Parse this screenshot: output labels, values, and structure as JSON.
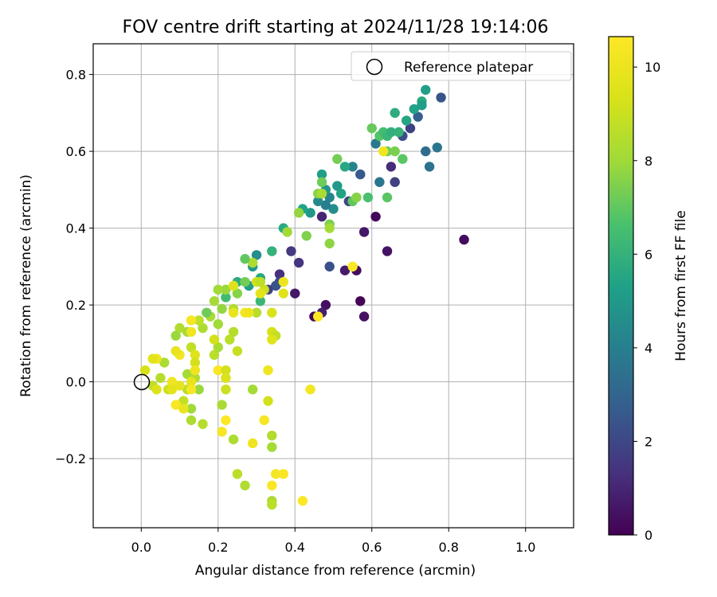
{
  "chart_data": {
    "type": "scatter",
    "title": "FOV centre drift starting at 2024/11/28 19:14:06",
    "xlabel": "Angular distance from reference (arcmin)",
    "ylabel": "Rotation from reference (arcmin)",
    "xlim": [
      -0.125,
      1.125
    ],
    "ylim": [
      -0.38,
      0.88
    ],
    "xticks": [
      0.0,
      0.2,
      0.4,
      0.6,
      0.8,
      1.0
    ],
    "xtick_labels": [
      "0.0",
      "0.2",
      "0.4",
      "0.6",
      "0.8",
      "1.0"
    ],
    "yticks": [
      -0.2,
      0.0,
      0.2,
      0.4,
      0.6,
      0.8
    ],
    "ytick_labels": [
      "−0.2",
      "0.0",
      "0.2",
      "0.4",
      "0.6",
      "0.8"
    ],
    "grid": true,
    "legend": {
      "placement": "top-right",
      "entries": [
        "Reference platepar"
      ]
    },
    "reference_point": {
      "x": 0.0,
      "y": 0.0
    },
    "colorbar": {
      "label": "Hours from first FF file",
      "range": [
        0,
        10.65
      ],
      "ticks": [
        0,
        2,
        4,
        6,
        8,
        10
      ],
      "tick_labels": [
        "0",
        "2",
        "4",
        "6",
        "8",
        "10"
      ],
      "colormap": "viridis"
    },
    "points": [
      {
        "x": 0.84,
        "y": 0.37,
        "h": 0.3
      },
      {
        "x": 0.61,
        "y": 0.43,
        "h": 0.2
      },
      {
        "x": 0.64,
        "y": 0.34,
        "h": 0.5
      },
      {
        "x": 0.57,
        "y": 0.21,
        "h": 0.1
      },
      {
        "x": 0.58,
        "y": 0.17,
        "h": 0.4
      },
      {
        "x": 0.56,
        "y": 0.29,
        "h": 0.3
      },
      {
        "x": 0.48,
        "y": 0.2,
        "h": 0.4
      },
      {
        "x": 0.47,
        "y": 0.18,
        "h": 0.8
      },
      {
        "x": 0.45,
        "y": 0.17,
        "h": 0.2
      },
      {
        "x": 0.4,
        "y": 0.23,
        "h": 0.6
      },
      {
        "x": 0.53,
        "y": 0.29,
        "h": 0.7
      },
      {
        "x": 0.58,
        "y": 0.39,
        "h": 0.6
      },
      {
        "x": 0.47,
        "y": 0.43,
        "h": 1.0
      },
      {
        "x": 0.41,
        "y": 0.31,
        "h": 1.4
      },
      {
        "x": 0.39,
        "y": 0.34,
        "h": 1.6
      },
      {
        "x": 0.36,
        "y": 0.28,
        "h": 1.3
      },
      {
        "x": 0.36,
        "y": 0.26,
        "h": 2.0
      },
      {
        "x": 0.35,
        "y": 0.25,
        "h": 2.4
      },
      {
        "x": 0.33,
        "y": 0.24,
        "h": 1.8
      },
      {
        "x": 0.49,
        "y": 0.3,
        "h": 2.3
      },
      {
        "x": 0.54,
        "y": 0.47,
        "h": 2.0
      },
      {
        "x": 0.57,
        "y": 0.54,
        "h": 2.6
      },
      {
        "x": 0.66,
        "y": 0.52,
        "h": 1.8
      },
      {
        "x": 0.65,
        "y": 0.56,
        "h": 1.2
      },
      {
        "x": 0.68,
        "y": 0.64,
        "h": 2.2
      },
      {
        "x": 0.7,
        "y": 0.66,
        "h": 1.8
      },
      {
        "x": 0.72,
        "y": 0.69,
        "h": 2.8
      },
      {
        "x": 0.78,
        "y": 0.74,
        "h": 2.4
      },
      {
        "x": 0.75,
        "y": 0.56,
        "h": 3.5
      },
      {
        "x": 0.74,
        "y": 0.6,
        "h": 3.3
      },
      {
        "x": 0.77,
        "y": 0.61,
        "h": 3.6
      },
      {
        "x": 0.62,
        "y": 0.52,
        "h": 3.6
      },
      {
        "x": 0.61,
        "y": 0.62,
        "h": 3.8
      },
      {
        "x": 0.55,
        "y": 0.56,
        "h": 4.2
      },
      {
        "x": 0.5,
        "y": 0.45,
        "h": 4.6
      },
      {
        "x": 0.49,
        "y": 0.48,
        "h": 4.2
      },
      {
        "x": 0.48,
        "y": 0.46,
        "h": 3.9
      },
      {
        "x": 0.46,
        "y": 0.47,
        "h": 4.4
      },
      {
        "x": 0.44,
        "y": 0.44,
        "h": 5.0
      },
      {
        "x": 0.42,
        "y": 0.45,
        "h": 5.4
      },
      {
        "x": 0.48,
        "y": 0.5,
        "h": 4.9
      },
      {
        "x": 0.47,
        "y": 0.54,
        "h": 5.2
      },
      {
        "x": 0.51,
        "y": 0.51,
        "h": 5.0
      },
      {
        "x": 0.52,
        "y": 0.49,
        "h": 5.4
      },
      {
        "x": 0.53,
        "y": 0.56,
        "h": 5.6
      },
      {
        "x": 0.37,
        "y": 0.4,
        "h": 5.7
      },
      {
        "x": 0.3,
        "y": 0.33,
        "h": 4.6
      },
      {
        "x": 0.29,
        "y": 0.3,
        "h": 5.0
      },
      {
        "x": 0.31,
        "y": 0.27,
        "h": 5.6
      },
      {
        "x": 0.28,
        "y": 0.25,
        "h": 5.2
      },
      {
        "x": 0.25,
        "y": 0.26,
        "h": 5.8
      },
      {
        "x": 0.34,
        "y": 0.34,
        "h": 6.0
      },
      {
        "x": 0.31,
        "y": 0.21,
        "h": 6.2
      },
      {
        "x": 0.22,
        "y": 0.22,
        "h": 6.4
      },
      {
        "x": 0.59,
        "y": 0.48,
        "h": 6.6
      },
      {
        "x": 0.64,
        "y": 0.48,
        "h": 6.9
      },
      {
        "x": 0.6,
        "y": 0.66,
        "h": 7.1
      },
      {
        "x": 0.62,
        "y": 0.64,
        "h": 6.8
      },
      {
        "x": 0.63,
        "y": 0.65,
        "h": 6.5
      },
      {
        "x": 0.64,
        "y": 0.64,
        "h": 6.2
      },
      {
        "x": 0.65,
        "y": 0.65,
        "h": 5.9
      },
      {
        "x": 0.66,
        "y": 0.7,
        "h": 5.8
      },
      {
        "x": 0.67,
        "y": 0.65,
        "h": 6.0
      },
      {
        "x": 0.69,
        "y": 0.68,
        "h": 5.5
      },
      {
        "x": 0.71,
        "y": 0.71,
        "h": 5.4
      },
      {
        "x": 0.73,
        "y": 0.73,
        "h": 5.7
      },
      {
        "x": 0.74,
        "y": 0.76,
        "h": 5.3
      },
      {
        "x": 0.73,
        "y": 0.72,
        "h": 5.2
      },
      {
        "x": 0.68,
        "y": 0.58,
        "h": 6.9
      },
      {
        "x": 0.64,
        "y": 0.6,
        "h": 7.2
      },
      {
        "x": 0.66,
        "y": 0.6,
        "h": 7.4
      },
      {
        "x": 0.55,
        "y": 0.47,
        "h": 7.0
      },
      {
        "x": 0.56,
        "y": 0.48,
        "h": 7.6
      },
      {
        "x": 0.51,
        "y": 0.58,
        "h": 7.3
      },
      {
        "x": 0.47,
        "y": 0.52,
        "h": 7.2
      },
      {
        "x": 0.46,
        "y": 0.49,
        "h": 7.6
      },
      {
        "x": 0.49,
        "y": 0.41,
        "h": 7.4
      },
      {
        "x": 0.49,
        "y": 0.36,
        "h": 7.7
      },
      {
        "x": 0.43,
        "y": 0.38,
        "h": 7.5
      },
      {
        "x": 0.38,
        "y": 0.39,
        "h": 8.0
      },
      {
        "x": 0.41,
        "y": 0.44,
        "h": 7.8
      },
      {
        "x": 0.47,
        "y": 0.49,
        "h": 8.2
      },
      {
        "x": 0.49,
        "y": 0.4,
        "h": 8.1
      },
      {
        "x": 0.29,
        "y": 0.31,
        "h": 8.3
      },
      {
        "x": 0.27,
        "y": 0.32,
        "h": 7.0
      },
      {
        "x": 0.27,
        "y": 0.26,
        "h": 7.3
      },
      {
        "x": 0.25,
        "y": 0.23,
        "h": 7.6
      },
      {
        "x": 0.22,
        "y": 0.24,
        "h": 7.9
      },
      {
        "x": 0.2,
        "y": 0.24,
        "h": 8.0
      },
      {
        "x": 0.21,
        "y": 0.19,
        "h": 7.8
      },
      {
        "x": 0.19,
        "y": 0.21,
        "h": 8.1
      },
      {
        "x": 0.18,
        "y": 0.17,
        "h": 8.2
      },
      {
        "x": 0.2,
        "y": 0.15,
        "h": 8.0
      },
      {
        "x": 0.17,
        "y": 0.18,
        "h": 7.2
      },
      {
        "x": 0.24,
        "y": 0.19,
        "h": 8.4
      },
      {
        "x": 0.24,
        "y": 0.13,
        "h": 8.5
      },
      {
        "x": 0.23,
        "y": 0.11,
        "h": 8.6
      },
      {
        "x": 0.16,
        "y": 0.14,
        "h": 8.3
      },
      {
        "x": 0.15,
        "y": 0.16,
        "h": 8.7
      },
      {
        "x": 0.12,
        "y": 0.13,
        "h": 8.1
      },
      {
        "x": 0.1,
        "y": 0.14,
        "h": 8.4
      },
      {
        "x": 0.09,
        "y": 0.12,
        "h": 7.9
      },
      {
        "x": 0.13,
        "y": 0.09,
        "h": 8.8
      },
      {
        "x": 0.19,
        "y": 0.07,
        "h": 8.6
      },
      {
        "x": 0.2,
        "y": 0.09,
        "h": 8.2
      },
      {
        "x": 0.25,
        "y": 0.08,
        "h": 8.9
      },
      {
        "x": 0.06,
        "y": 0.05,
        "h": 8.3
      },
      {
        "x": 0.05,
        "y": 0.01,
        "h": 8.5
      },
      {
        "x": 0.03,
        "y": -0.01,
        "h": 8.7
      },
      {
        "x": 0.07,
        "y": -0.02,
        "h": 9.0
      },
      {
        "x": 0.12,
        "y": 0.02,
        "h": 8.1
      },
      {
        "x": 0.14,
        "y": 0.01,
        "h": 8.4
      },
      {
        "x": 0.15,
        "y": -0.02,
        "h": 7.9
      },
      {
        "x": 0.12,
        "y": -0.02,
        "h": 8.6
      },
      {
        "x": 0.11,
        "y": -0.05,
        "h": 8.8
      },
      {
        "x": 0.13,
        "y": -0.07,
        "h": 8.0
      },
      {
        "x": 0.13,
        "y": -0.1,
        "h": 8.3
      },
      {
        "x": 0.16,
        "y": -0.11,
        "h": 8.5
      },
      {
        "x": 0.21,
        "y": -0.06,
        "h": 8.2
      },
      {
        "x": 0.22,
        "y": -0.02,
        "h": 9.0
      },
      {
        "x": 0.24,
        "y": -0.15,
        "h": 8.3
      },
      {
        "x": 0.25,
        "y": -0.24,
        "h": 8.6
      },
      {
        "x": 0.27,
        "y": -0.27,
        "h": 8.4
      },
      {
        "x": 0.29,
        "y": -0.02,
        "h": 8.1
      },
      {
        "x": 0.34,
        "y": -0.14,
        "h": 8.4
      },
      {
        "x": 0.34,
        "y": -0.17,
        "h": 8.1
      },
      {
        "x": 0.34,
        "y": -0.31,
        "h": 8.3
      },
      {
        "x": 0.34,
        "y": -0.32,
        "h": 8.6
      },
      {
        "x": 0.33,
        "y": -0.05,
        "h": 9.2
      },
      {
        "x": 0.3,
        "y": 0.18,
        "h": 8.5
      },
      {
        "x": 0.32,
        "y": 0.24,
        "h": 9.0
      },
      {
        "x": 0.31,
        "y": 0.23,
        "h": 9.7
      },
      {
        "x": 0.34,
        "y": 0.13,
        "h": 9.3
      },
      {
        "x": 0.35,
        "y": 0.12,
        "h": 8.8
      },
      {
        "x": 0.34,
        "y": 0.11,
        "h": 9.6
      },
      {
        "x": 0.34,
        "y": 0.18,
        "h": 9.4
      },
      {
        "x": 0.37,
        "y": 0.23,
        "h": 9.6
      },
      {
        "x": 0.37,
        "y": 0.26,
        "h": 10.0
      },
      {
        "x": 0.3,
        "y": 0.26,
        "h": 9.2
      },
      {
        "x": 0.31,
        "y": 0.26,
        "h": 8.7
      },
      {
        "x": 0.24,
        "y": 0.25,
        "h": 9.5
      },
      {
        "x": 0.24,
        "y": 0.18,
        "h": 9.9
      },
      {
        "x": 0.27,
        "y": 0.18,
        "h": 10.3
      },
      {
        "x": 0.28,
        "y": 0.18,
        "h": 10.1
      },
      {
        "x": 0.19,
        "y": 0.11,
        "h": 9.2
      },
      {
        "x": 0.13,
        "y": 0.16,
        "h": 10.4
      },
      {
        "x": 0.13,
        "y": 0.13,
        "h": 10.2
      },
      {
        "x": 0.14,
        "y": 0.07,
        "h": 9.6
      },
      {
        "x": 0.14,
        "y": 0.05,
        "h": 9.2
      },
      {
        "x": 0.14,
        "y": 0.03,
        "h": 10.1
      },
      {
        "x": 0.13,
        "y": 0.0,
        "h": 9.8
      },
      {
        "x": 0.13,
        "y": -0.02,
        "h": 10.4
      },
      {
        "x": 0.1,
        "y": -0.01,
        "h": 9.8
      },
      {
        "x": 0.08,
        "y": 0.0,
        "h": 10.2
      },
      {
        "x": 0.09,
        "y": -0.06,
        "h": 10.5
      },
      {
        "x": 0.11,
        "y": -0.07,
        "h": 9.9
      },
      {
        "x": 0.1,
        "y": 0.07,
        "h": 10.3
      },
      {
        "x": 0.09,
        "y": 0.08,
        "h": 9.9
      },
      {
        "x": 0.04,
        "y": 0.06,
        "h": 10.2
      },
      {
        "x": 0.03,
        "y": 0.06,
        "h": 9.7
      },
      {
        "x": 0.01,
        "y": 0.03,
        "h": 9.3
      },
      {
        "x": 0.04,
        "y": -0.02,
        "h": 9.5
      },
      {
        "x": 0.08,
        "y": -0.02,
        "h": 9.7
      },
      {
        "x": 0.2,
        "y": 0.03,
        "h": 10.5
      },
      {
        "x": 0.22,
        "y": 0.03,
        "h": 9.2
      },
      {
        "x": 0.22,
        "y": 0.01,
        "h": 9.4
      },
      {
        "x": 0.21,
        "y": -0.13,
        "h": 10.4
      },
      {
        "x": 0.22,
        "y": -0.1,
        "h": 10.6
      },
      {
        "x": 0.29,
        "y": -0.16,
        "h": 10.1
      },
      {
        "x": 0.32,
        "y": -0.1,
        "h": 10.4
      },
      {
        "x": 0.33,
        "y": 0.03,
        "h": 10.2
      },
      {
        "x": 0.34,
        "y": -0.27,
        "h": 10.5
      },
      {
        "x": 0.35,
        "y": -0.24,
        "h": 10.3
      },
      {
        "x": 0.37,
        "y": -0.24,
        "h": 10.5
      },
      {
        "x": 0.42,
        "y": -0.31,
        "h": 10.6
      },
      {
        "x": 0.44,
        "y": -0.02,
        "h": 10.3
      },
      {
        "x": 0.46,
        "y": 0.17,
        "h": 10.6
      },
      {
        "x": 0.55,
        "y": 0.3,
        "h": 10.6
      },
      {
        "x": 0.63,
        "y": 0.6,
        "h": 10.2
      }
    ]
  }
}
